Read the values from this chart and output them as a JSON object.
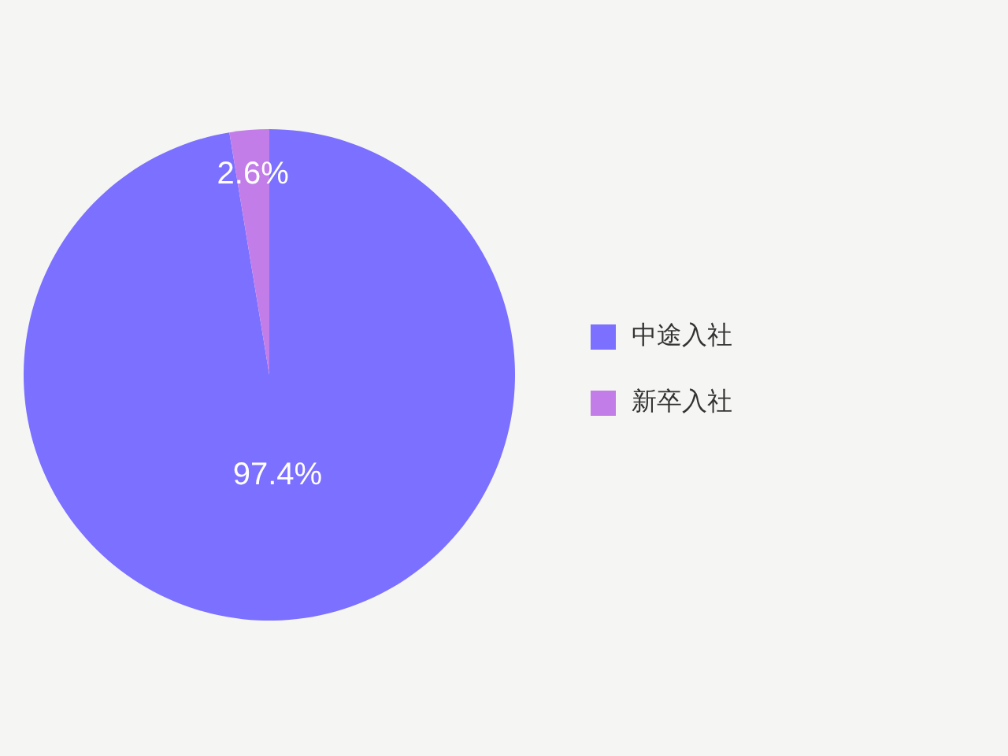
{
  "chart_data": {
    "type": "pie",
    "categories": [
      "中途入社",
      "新卒入社"
    ],
    "values": [
      97.4,
      2.6
    ],
    "colors": [
      "#7b70ff",
      "#c27de9"
    ],
    "value_labels": [
      "97.4%",
      "2.6%"
    ],
    "legend": "right"
  }
}
